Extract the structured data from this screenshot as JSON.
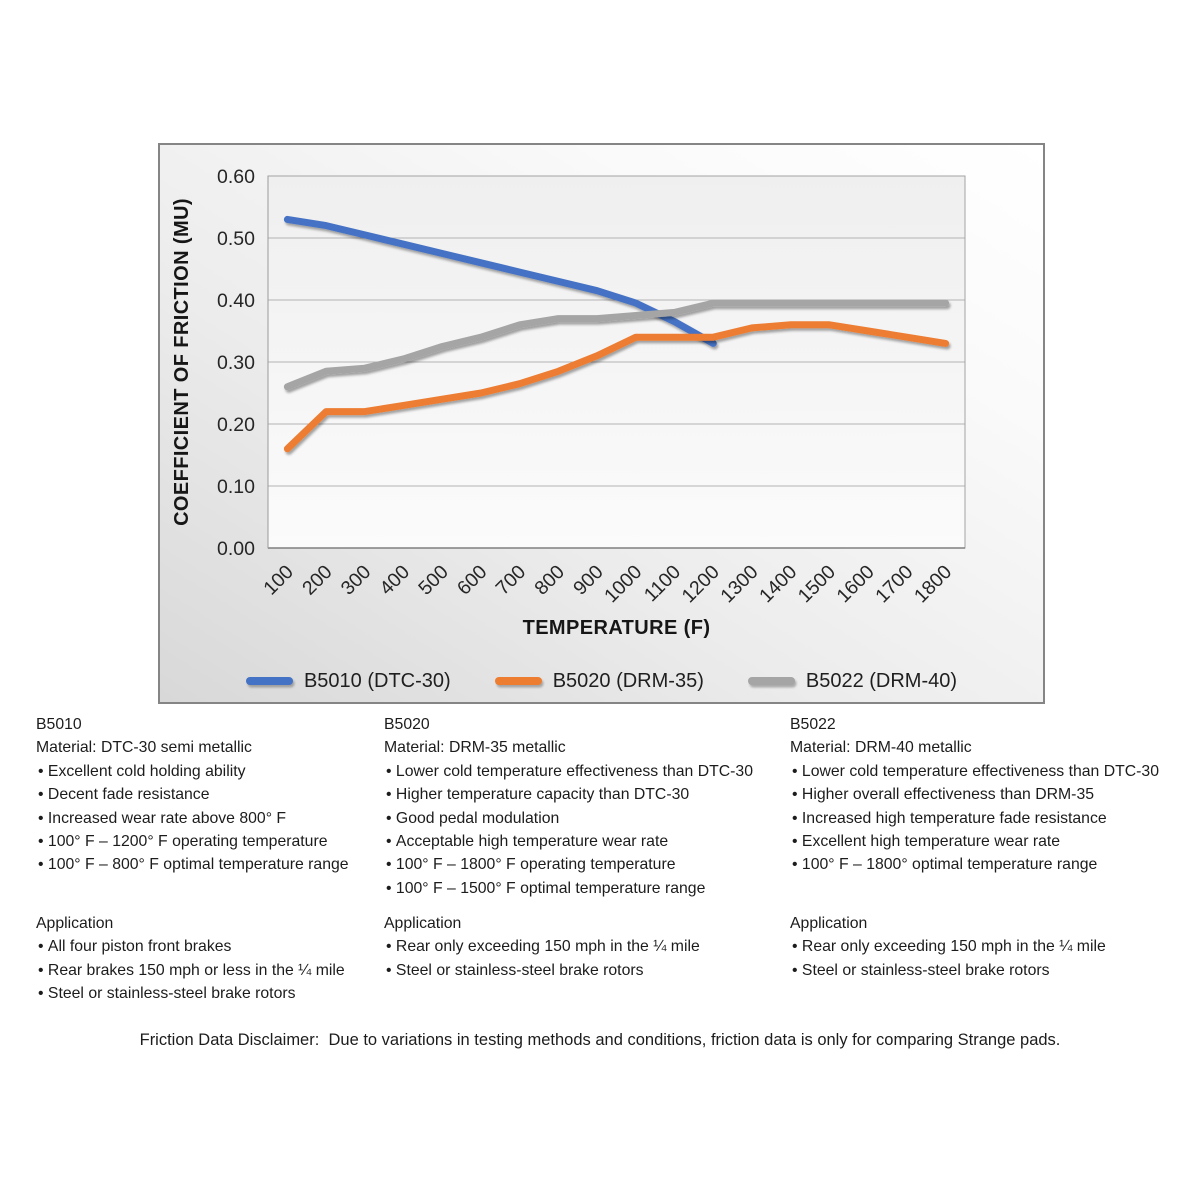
{
  "chart_data": {
    "type": "line",
    "title": "",
    "xlabel": "TEMPERATURE (F)",
    "ylabel": "COEFFICIENT OF FRICTION (MU)",
    "categories": [
      "100",
      "200",
      "300",
      "400",
      "500",
      "600",
      "700",
      "800",
      "900",
      "1000",
      "1100",
      "1200",
      "1300",
      "1400",
      "1500",
      "1600",
      "1700",
      "1800"
    ],
    "ylim": [
      0,
      0.6
    ],
    "y_tick_labels": [
      "0.60",
      "0.50",
      "0.40",
      "0.30",
      "0.20",
      "0.10",
      "0.00"
    ],
    "grid": true,
    "legend_position": "bottom",
    "series": [
      {
        "name": "B5010 (DTC-30)",
        "color": "#4472C4",
        "values": [
          0.53,
          0.52,
          0.505,
          0.49,
          0.475,
          0.46,
          0.445,
          0.43,
          0.415,
          0.395,
          0.365,
          0.33,
          null,
          null,
          null,
          null,
          null,
          null
        ]
      },
      {
        "name": "B5020 (DRM-35)",
        "color": "#ED7D31",
        "values": [
          0.16,
          0.22,
          0.22,
          0.23,
          0.24,
          0.25,
          0.265,
          0.285,
          0.31,
          0.34,
          0.34,
          0.34,
          0.355,
          0.36,
          0.36,
          0.35,
          0.34,
          0.33
        ]
      },
      {
        "name": "B5022 (DRM-40)",
        "color": "#A5A5A5",
        "values": [
          0.26,
          0.285,
          0.29,
          0.305,
          0.325,
          0.34,
          0.36,
          0.37,
          0.37,
          0.375,
          0.38,
          0.395,
          0.395,
          0.395,
          0.395,
          0.395,
          0.395,
          0.395
        ]
      }
    ]
  },
  "material_columns": [
    {
      "id": "B5010",
      "material": "Material: DTC-30 semi metallic",
      "features": [
        "Excellent cold holding ability",
        "Decent fade resistance",
        "Increased wear rate above 800° F",
        "100° F – 1200° F operating temperature",
        "100° F – 800° F optimal temperature range"
      ],
      "application_title": "Application",
      "applications": [
        "All four piston front brakes",
        "Rear brakes 150 mph or less in the ¼ mile",
        "Steel or stainless-steel brake rotors"
      ]
    },
    {
      "id": "B5020",
      "material": "Material: DRM-35 metallic",
      "features": [
        "Lower cold temperature effectiveness than DTC-30",
        "Higher temperature capacity than DTC-30",
        "Good pedal modulation",
        "Acceptable high temperature wear rate",
        "100° F – 1800° F operating temperature",
        "100° F – 1500° F optimal temperature range"
      ],
      "application_title": "Application",
      "applications": [
        "Rear only exceeding 150 mph in the ¼ mile",
        "Steel or stainless-steel brake rotors"
      ]
    },
    {
      "id": "B5022",
      "material": "Material: DRM-40 metallic",
      "features": [
        "Lower cold temperature effectiveness than DTC-30",
        "Higher overall effectiveness than DRM-35",
        "Increased high temperature fade resistance",
        "Excellent high temperature wear rate",
        "100° F – 1800° optimal temperature range"
      ],
      "application_title": "Application",
      "applications": [
        "Rear only exceeding 150 mph in the ¼ mile",
        "Steel or stainless-steel brake rotors"
      ]
    }
  ],
  "disclaimer": "Friction Data Disclaimer:  Due to variations in testing methods and conditions, friction data is only for comparing Strange pads."
}
